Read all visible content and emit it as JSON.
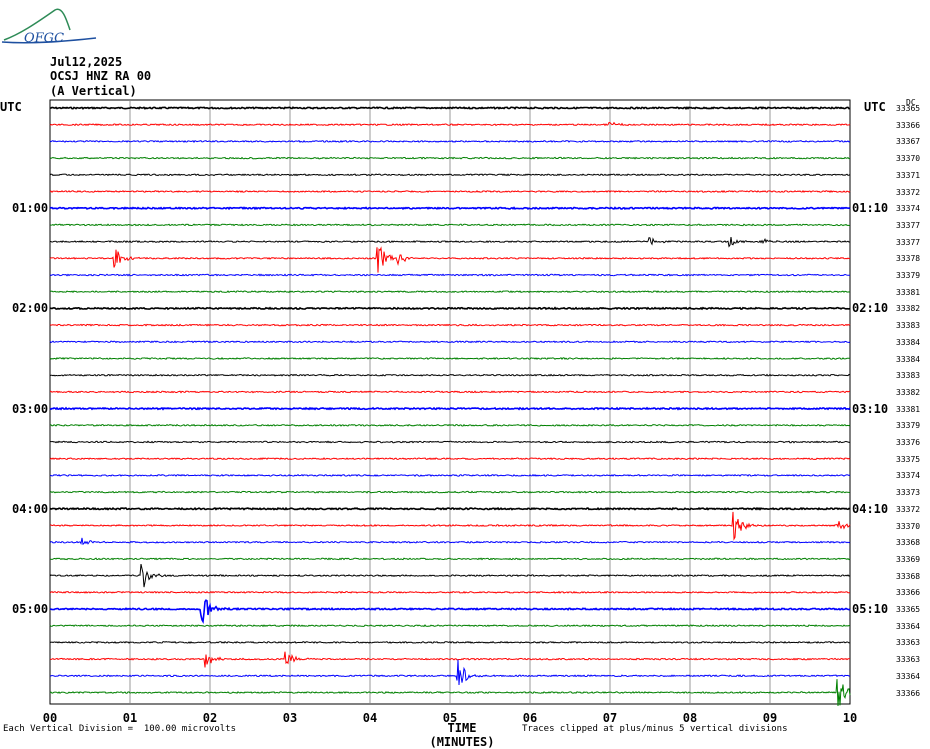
{
  "header": {
    "date": "Jul12,2025",
    "station": "OCSJ HNZ RA 00",
    "component": "(A Vertical)",
    "logo_text": "OFGC"
  },
  "colors": {
    "trace_cycle": [
      "#000000",
      "#ff0000",
      "#0000ff",
      "#008000"
    ],
    "grid": "#808080"
  },
  "chart_data": {
    "type": "line",
    "left_label": "UTC",
    "right_label": "UTC",
    "dc_label": "DC",
    "left_hour_labels": [
      "01:00",
      "02:00",
      "03:00",
      "04:00",
      "05:00"
    ],
    "right_hour_labels": [
      "01:10",
      "02:10",
      "03:10",
      "04:10",
      "05:10"
    ],
    "dc_offsets": [
      33365,
      33366,
      33367,
      33370,
      33371,
      33372,
      33374,
      33377,
      33377,
      33378,
      33379,
      33381,
      33382,
      33383,
      33384,
      33384,
      33383,
      33382,
      33381,
      33379,
      33376,
      33375,
      33374,
      33373,
      33372,
      33370,
      33368,
      33369,
      33368,
      33366,
      33365,
      33364,
      33363,
      33363,
      33364,
      33366
    ],
    "x_tick_labels": [
      "00",
      "01",
      "02",
      "03",
      "04",
      "05",
      "06",
      "07",
      "08",
      "09",
      "10"
    ],
    "xlabel": "TIME (MINUTES)",
    "xlim": [
      0,
      10
    ],
    "events": [
      {
        "row": 9,
        "x": 0.8,
        "amp": 12
      },
      {
        "row": 9,
        "x": 4.1,
        "amp": 18
      },
      {
        "row": 9,
        "x": 4.35,
        "amp": 6
      },
      {
        "row": 8,
        "x": 7.5,
        "amp": 4
      },
      {
        "row": 8,
        "x": 8.5,
        "amp": 6
      },
      {
        "row": 8,
        "x": 8.9,
        "amp": 3
      },
      {
        "row": 1,
        "x": 7.0,
        "amp": 3
      },
      {
        "row": 25,
        "x": 8.55,
        "amp": 16
      },
      {
        "row": 25,
        "x": 9.85,
        "amp": 8
      },
      {
        "row": 26,
        "x": 0.4,
        "amp": 4
      },
      {
        "row": 28,
        "x": 1.15,
        "amp": 18
      },
      {
        "row": 30,
        "x": 1.9,
        "amp": 16
      },
      {
        "row": 33,
        "x": 1.95,
        "amp": 9
      },
      {
        "row": 33,
        "x": 2.95,
        "amp": 8
      },
      {
        "row": 34,
        "x": 5.1,
        "amp": 18
      },
      {
        "row": 35,
        "x": 9.85,
        "amp": 18
      }
    ],
    "footer_left": "Each Vertical Division =  100.00 microvolts",
    "footer_right": "Traces clipped at plus/minus 5 vertical divisions"
  }
}
